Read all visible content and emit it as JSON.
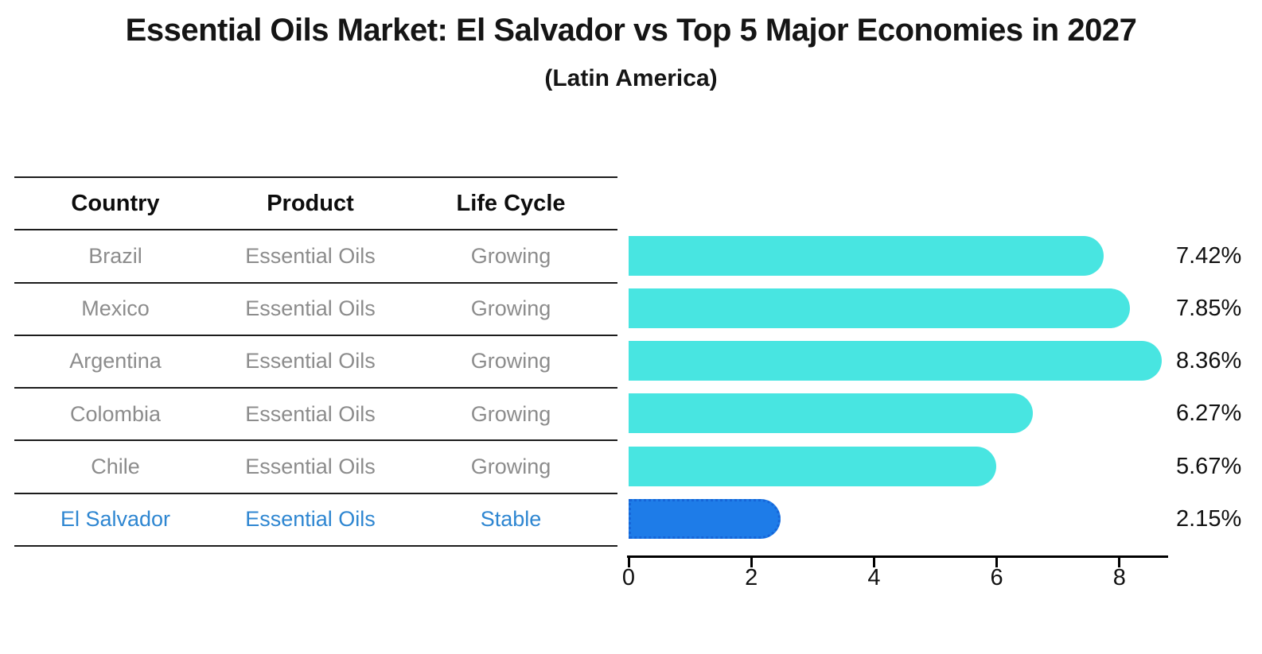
{
  "title": "Essential Oils Market: El Salvador vs Top 5 Major Economies in 2027",
  "subtitle": "(Latin America)",
  "colors": {
    "bar_fill": "#48E5E1",
    "highlight_bar_fill": "#1E7CE8",
    "highlight_bar_border": "#1565D8",
    "row_text": "#8C8C8C",
    "highlight_text": "#2E86D1",
    "header_text": "#0d0d0d",
    "axis": "#000000",
    "background": "#FFFFFF"
  },
  "table": {
    "headers": [
      "Country",
      "Product",
      "Life Cycle"
    ],
    "rows": [
      [
        "Brazil",
        "Essential Oils",
        "Growing"
      ],
      [
        "Mexico",
        "Essential Oils",
        "Growing"
      ],
      [
        "Argentina",
        "Essential Oils",
        "Growing"
      ],
      [
        "Colombia",
        "Essential Oils",
        "Growing"
      ],
      [
        "Chile",
        "Essential Oils",
        "Growing"
      ],
      [
        "El Salvador",
        "Essential Oils",
        "Stable"
      ]
    ]
  },
  "chart_data": {
    "type": "bar",
    "orientation": "horizontal",
    "title": "Essential Oils Market: El Salvador vs Top 5 Major Economies in 2027",
    "subtitle": "(Latin America)",
    "categories": [
      "Brazil",
      "Mexico",
      "Argentina",
      "Colombia",
      "Chile",
      "El Salvador"
    ],
    "values": [
      7.42,
      7.85,
      8.36,
      6.27,
      5.67,
      2.15
    ],
    "value_labels": [
      "7.42%",
      "7.85%",
      "8.36%",
      "6.27%",
      "5.67%",
      "2.15%"
    ],
    "units": "%",
    "xticks": [
      "0",
      "2",
      "4",
      "6",
      "8"
    ],
    "xlim": [
      0,
      8.8
    ],
    "highlight_index": 5,
    "grid": false,
    "legend_position": "none"
  }
}
